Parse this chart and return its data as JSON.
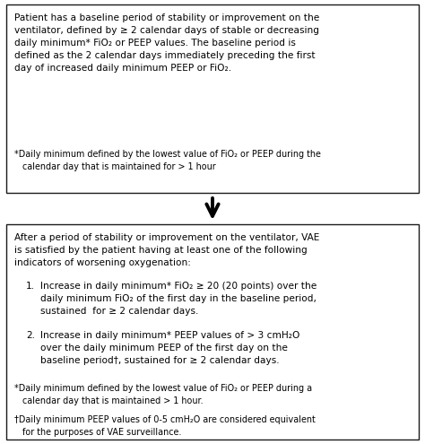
{
  "box1_main": "Patient has a baseline period of stability or improvement on the\nventilator, defined by ≥ 2 calendar days of stable or decreasing\ndaily minimum* FiO₂ or PEEP values. The baseline period is\ndefined as the 2 calendar days immediately preceding the first\nday of increased daily minimum PEEP or FiO₂.",
  "box1_footnote": "*Daily minimum defined by the lowest value of FiO₂ or PEEP during the\n   calendar day that is maintained for > 1 hour",
  "box2_intro": "After a period of stability or improvement on the ventilator, VAE\nis satisfied by the patient having at least one of the following\nindicators of worsening oxygenation:",
  "box2_item1_label": "1.",
  "box2_item1": "Increase in daily minimum* FiO₂ ≥ 20 (20 points) over the\ndaily minimum FiO₂ of the first day in the baseline period,\nsustained  for ≥ 2 calendar days.",
  "box2_item2_label": "2.",
  "box2_item2": "Increase in daily minimum* PEEP values of > 3 cmH₂O\nover the daily minimum PEEP of the first day on the\nbaseline period†, sustained for ≥ 2 calendar days.",
  "box2_footnote1": "*Daily minimum defined by the lowest value of FiO₂ or PEEP during a\n   calendar day that is maintained > 1 hour.",
  "box2_footnote2": "†Daily minimum PEEP values of 0-5 cmH₂O are considered equivalent\n   for the purposes of VAE surveillance.",
  "bg_color": "#ffffff",
  "box_edge_color": "#1a1a1a",
  "text_color": "#000000",
  "arrow_color": "#000000",
  "font_size_main": 7.6,
  "font_size_footnote": 6.9,
  "fig_width": 4.74,
  "fig_height": 4.95,
  "dpi": 100
}
